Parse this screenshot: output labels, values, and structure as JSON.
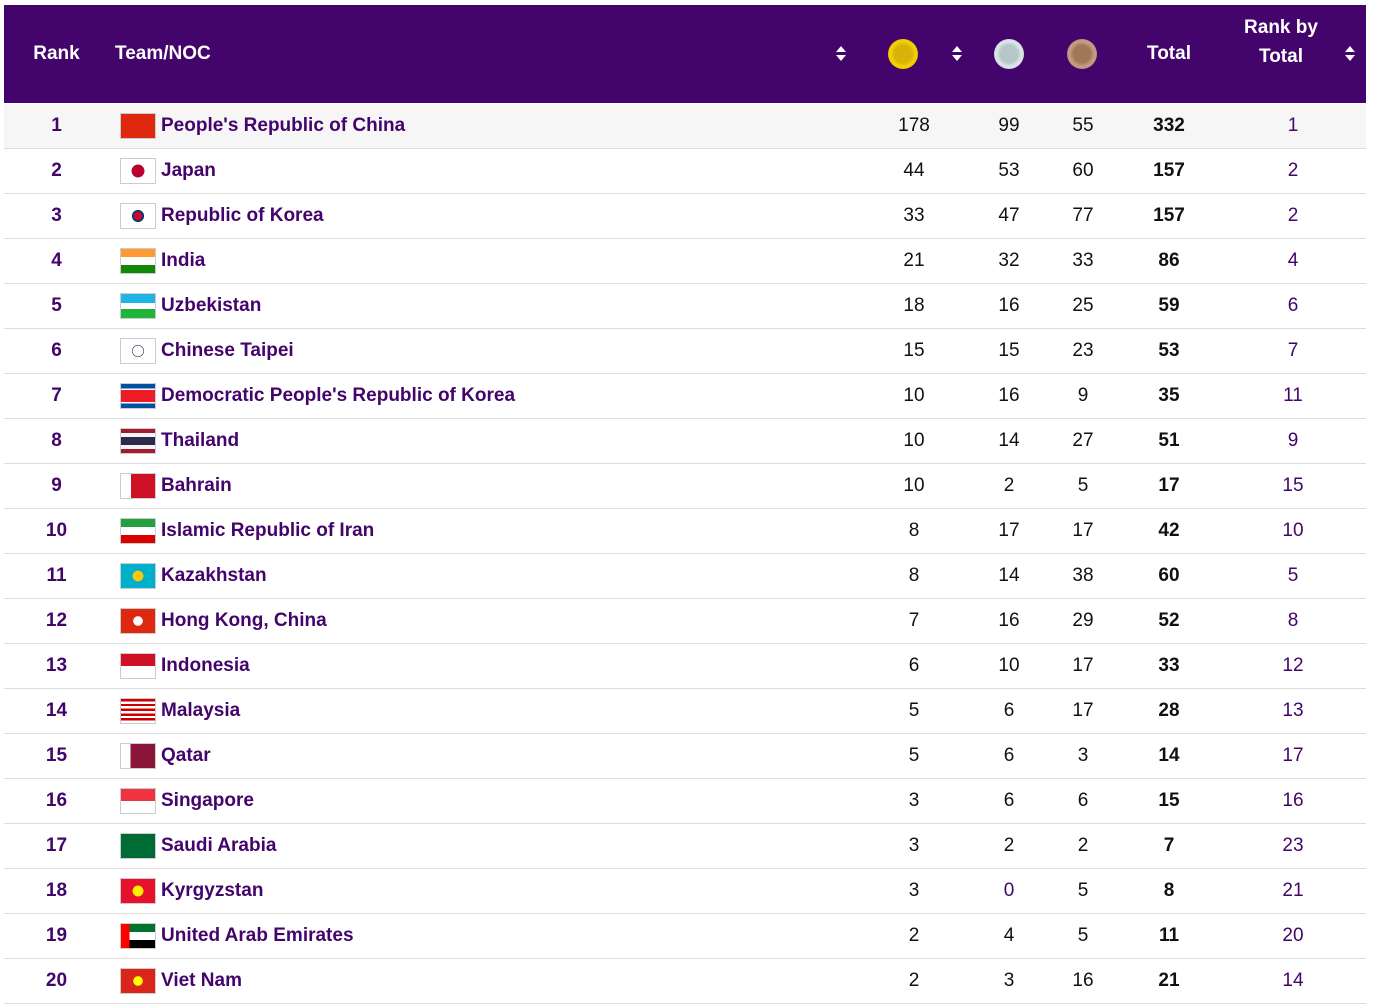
{
  "header": {
    "rank": "Rank",
    "team": "Team/NOC",
    "total": "Total",
    "rank_by_total": "Rank by Total"
  },
  "table": {
    "rows": [
      [
        1,
        "People's Republic of China",
        178,
        99,
        55,
        332,
        1
      ],
      [
        2,
        "Japan",
        44,
        53,
        60,
        157,
        2
      ],
      [
        3,
        "Republic of Korea",
        33,
        47,
        77,
        157,
        2
      ],
      [
        4,
        "India",
        21,
        32,
        33,
        86,
        4
      ],
      [
        5,
        "Uzbekistan",
        18,
        16,
        25,
        59,
        6
      ],
      [
        6,
        "Chinese Taipei",
        15,
        15,
        23,
        53,
        7
      ],
      [
        7,
        "Democratic People's Republic of Korea",
        10,
        16,
        9,
        35,
        11
      ],
      [
        8,
        "Thailand",
        10,
        14,
        27,
        51,
        9
      ],
      [
        9,
        "Bahrain",
        10,
        2,
        5,
        17,
        15
      ],
      [
        10,
        "Islamic Republic of Iran",
        8,
        17,
        17,
        42,
        10
      ],
      [
        11,
        "Kazakhstan",
        8,
        14,
        38,
        60,
        5
      ],
      [
        12,
        "Hong Kong, China",
        7,
        16,
        29,
        52,
        8
      ],
      [
        13,
        "Indonesia",
        6,
        10,
        17,
        33,
        12
      ],
      [
        14,
        "Malaysia",
        5,
        6,
        17,
        28,
        13
      ],
      [
        15,
        "Qatar",
        5,
        6,
        3,
        14,
        17
      ],
      [
        16,
        "Singapore",
        3,
        6,
        6,
        15,
        16
      ],
      [
        17,
        "Saudi Arabia",
        3,
        2,
        2,
        7,
        23
      ],
      [
        18,
        "Kyrgyzstan",
        3,
        0,
        5,
        8,
        21
      ],
      [
        19,
        "United Arab Emirates",
        2,
        4,
        5,
        11,
        20
      ],
      [
        20,
        "Viet Nam",
        2,
        3,
        16,
        21,
        14
      ]
    ]
  }
}
